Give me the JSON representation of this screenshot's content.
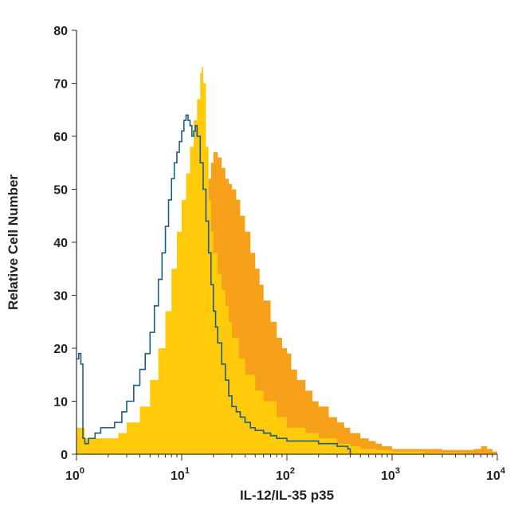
{
  "chart_data": {
    "type": "area",
    "title": "",
    "xlabel": "IL-12/IL-35 p35",
    "ylabel": "Relative Cell Number",
    "x_scale": "log",
    "xlim": [
      1,
      10000
    ],
    "ylim": [
      0,
      80
    ],
    "grid": false,
    "legend": "none",
    "x_ticks": [
      {
        "value": 1,
        "base": "10",
        "exp": "0"
      },
      {
        "value": 10,
        "base": "10",
        "exp": "1"
      },
      {
        "value": 100,
        "base": "10",
        "exp": "2"
      },
      {
        "value": 1000,
        "base": "10",
        "exp": "3"
      },
      {
        "value": 10000,
        "base": "10",
        "exp": "4"
      }
    ],
    "y_ticks": [
      "0",
      "10",
      "20",
      "30",
      "40",
      "50",
      "60",
      "70",
      "80"
    ],
    "series": [
      {
        "style": "filled",
        "color": "#F7A11A",
        "x": [
          1,
          1.2,
          1.5,
          2,
          3,
          4,
          5,
          6,
          7,
          8,
          9,
          10,
          11,
          12,
          13,
          14,
          15,
          16,
          17,
          18,
          19,
          20,
          22,
          24,
          26,
          28,
          30,
          33,
          36,
          40,
          45,
          50,
          55,
          60,
          70,
          80,
          90,
          100,
          110,
          125,
          150,
          175,
          200,
          250,
          300,
          350,
          400,
          500,
          600,
          700,
          800,
          1000,
          1500,
          2000,
          3000,
          4000,
          5000,
          6000,
          7000,
          8000,
          9000,
          10000
        ],
        "y": [
          2,
          1.5,
          1.8,
          1.5,
          2,
          2.5,
          3,
          3,
          4,
          5,
          7,
          10,
          15,
          21,
          28,
          35,
          40,
          44,
          48,
          52,
          55,
          57,
          56,
          54,
          52,
          51,
          50,
          48,
          45,
          42,
          38,
          35,
          32,
          29,
          25,
          22,
          20,
          19,
          16,
          14,
          12,
          10,
          9,
          7,
          6,
          5,
          4,
          3,
          2.5,
          2,
          1.5,
          1,
          1,
          1,
          0.8,
          0.8,
          0.8,
          1,
          1.5,
          1,
          0.5,
          0
        ]
      },
      {
        "style": "filled",
        "color": "#FFCA0A",
        "x": [
          1,
          1.2,
          1.5,
          2,
          2.5,
          3,
          4,
          5,
          6,
          7,
          8,
          9,
          10,
          11,
          12,
          13,
          14,
          15,
          15.5,
          16,
          17,
          18,
          19,
          20,
          22,
          24,
          26,
          28,
          30,
          35,
          40,
          50,
          60,
          80,
          100,
          150,
          200,
          300,
          400,
          500,
          700,
          1000,
          2000,
          5000,
          10000
        ],
        "y": [
          5,
          3,
          3,
          3,
          4,
          6,
          9,
          14,
          20,
          27,
          35,
          42,
          48,
          53,
          58,
          63,
          67,
          72,
          73,
          70,
          58,
          48,
          42,
          38,
          34,
          31,
          28,
          25,
          22,
          18,
          15,
          12,
          10,
          7,
          5,
          4,
          3,
          2,
          1.5,
          1,
          0.8,
          0.5,
          0.3,
          0.2,
          0
        ]
      },
      {
        "style": "outline",
        "color": "#1F5D7F",
        "x": [
          1,
          1.05,
          1.1,
          1.15,
          1.2,
          1.3,
          1.5,
          1.7,
          2,
          2.3,
          2.7,
          3,
          3.5,
          4,
          4.5,
          5,
          5.5,
          6,
          6.5,
          7,
          7.5,
          8,
          8.5,
          9,
          9.5,
          10,
          10.5,
          11,
          11.5,
          12,
          12.5,
          13,
          13.5,
          14,
          15,
          16,
          17,
          18,
          19,
          20,
          21,
          22,
          24,
          26,
          28,
          30,
          33,
          36,
          40,
          45,
          50,
          60,
          70,
          80,
          100,
          120,
          150,
          200,
          250,
          300,
          350,
          380,
          400
        ],
        "y": [
          18,
          19,
          17,
          3,
          2,
          3,
          4,
          5,
          5,
          6,
          8,
          10,
          13,
          16,
          19,
          23,
          28,
          33,
          38,
          43,
          48,
          52,
          55,
          57,
          59,
          61,
          63,
          64,
          63,
          62,
          60,
          61,
          62,
          60,
          55,
          50,
          44,
          38,
          32,
          27,
          24,
          21,
          17,
          14,
          11,
          9,
          8,
          7,
          6,
          5,
          4.5,
          4,
          3.5,
          3,
          2.5,
          2.5,
          2.5,
          2,
          2,
          1.5,
          1.5,
          1,
          0
        ]
      }
    ]
  }
}
